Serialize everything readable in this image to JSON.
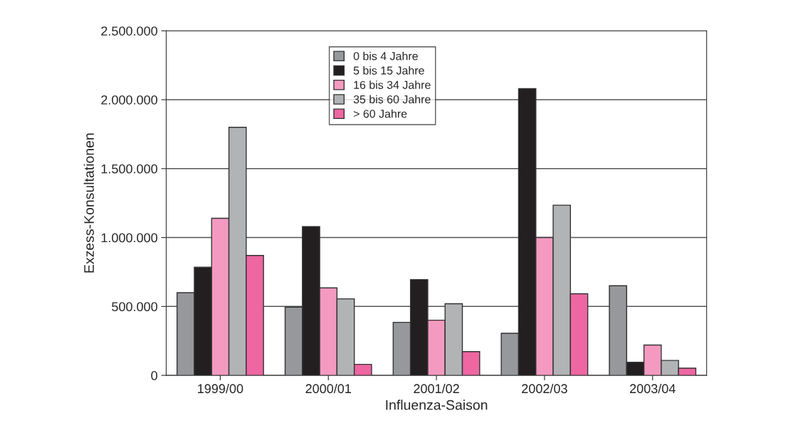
{
  "chart_data": {
    "type": "bar",
    "xlabel": "Influenza-Saison",
    "ylabel": "Exzess-Konsultationen",
    "categories": [
      "1999/00",
      "2000/01",
      "2001/02",
      "2002/03",
      "2003/04"
    ],
    "series": [
      {
        "name": "0 bis 4 Jahre",
        "color": "#97989c",
        "values": [
          600000,
          495000,
          385000,
          305000,
          650000
        ]
      },
      {
        "name": "5 bis 15 Jahre",
        "color": "#231f20",
        "values": [
          785000,
          1080000,
          695000,
          2080000,
          95000
        ]
      },
      {
        "name": "16 bis 34 Jahre",
        "color": "#f49ac1",
        "values": [
          1140000,
          635000,
          400000,
          1000000,
          220000
        ]
      },
      {
        "name": "35 bis 60 Jahre",
        "color": "#b2b3b5",
        "values": [
          1800000,
          555000,
          520000,
          1235000,
          108000
        ]
      },
      {
        "name": "> 60 Jahre",
        "color": "#ee66a2",
        "values": [
          870000,
          80000,
          172000,
          592000,
          52000
        ]
      }
    ],
    "ylim": [
      0,
      2500000
    ],
    "yticks": [
      0,
      {
        "value": 500000,
        "label": "500.000"
      },
      {
        "value": 1000000,
        "label": "1.000.000"
      },
      {
        "value": 1500000,
        "label": "1.500.000"
      },
      {
        "value": 2000000,
        "label": "2.000.000"
      },
      {
        "value": 2500000,
        "label": "2.500.000"
      }
    ],
    "grid": "y",
    "legend": "top"
  }
}
